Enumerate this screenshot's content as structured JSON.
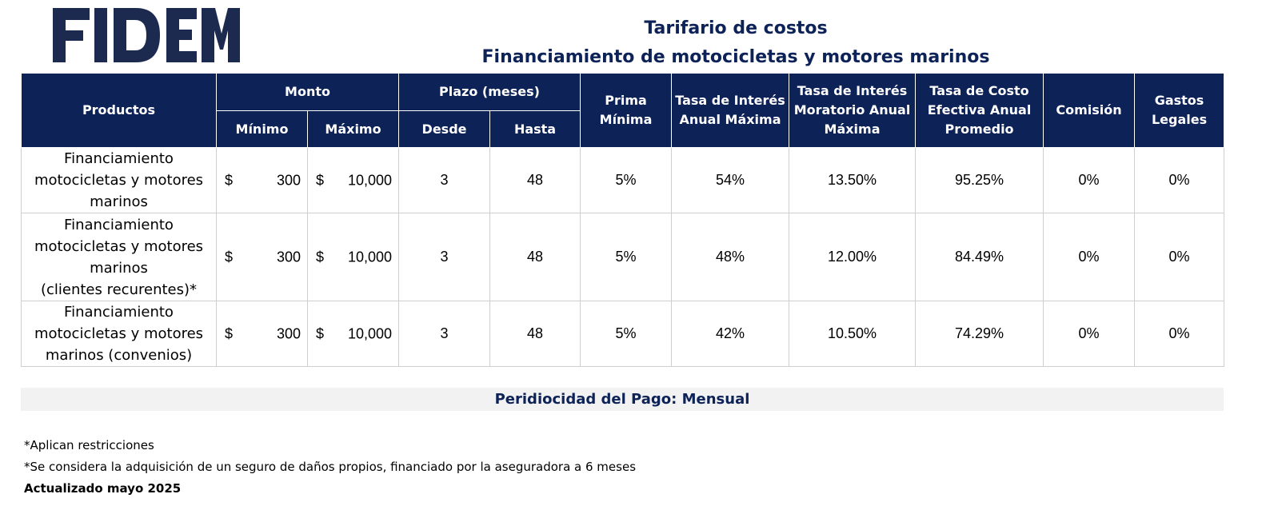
{
  "logo": {
    "text": "FIDEM",
    "color": "#1b2a4e"
  },
  "title": "Tarifario de costos",
  "subtitle": "Financiamiento de motocicletas y motores marinos",
  "table": {
    "header_color": "#0d2257",
    "headers": {
      "productos": "Productos",
      "monto": "Monto",
      "minimo": "Mínimo",
      "maximo": "Máximo",
      "plazo": "Plazo (meses)",
      "desde": "Desde",
      "hasta": "Hasta",
      "prima": "Prima Mínima",
      "tasa_interes": "Tasa de Interés Anual Máxima",
      "tasa_moratorio": "Tasa de Interés Moratorio Anual Máxima",
      "tasa_costo": "Tasa de Costo Efectiva Anual Promedio",
      "comision": "Comisión",
      "gastos": "Gastos Legales"
    },
    "rows": [
      {
        "producto": [
          "Financiamiento",
          "motocicletas y motores",
          "marinos"
        ],
        "currency": "$",
        "minimo": "300",
        "maximo": "10,000",
        "desde": "3",
        "hasta": "48",
        "prima": "5%",
        "tasa_interes": "54%",
        "tasa_moratorio": "13.50%",
        "tasa_costo": "95.25%",
        "comision": "0%",
        "gastos": "0%"
      },
      {
        "producto": [
          "Financiamiento",
          "motocicletas y motores",
          "marinos",
          "(clientes recurentes)*"
        ],
        "currency": "$",
        "minimo": "300",
        "maximo": "10,000",
        "desde": "3",
        "hasta": "48",
        "prima": "5%",
        "tasa_interes": "48%",
        "tasa_moratorio": "12.00%",
        "tasa_costo": "84.49%",
        "comision": "0%",
        "gastos": "0%"
      },
      {
        "producto": [
          "Financiamiento",
          "motocicletas y motores",
          "marinos (convenios)"
        ],
        "currency": "$",
        "minimo": "300",
        "maximo": "10,000",
        "desde": "3",
        "hasta": "48",
        "prima": "5%",
        "tasa_interes": "42%",
        "tasa_moratorio": "10.50%",
        "tasa_costo": "74.29%",
        "comision": "0%",
        "gastos": "0%"
      }
    ]
  },
  "periodicidad": "Peridiocidad del Pago: Mensual",
  "notes": [
    "*Aplican restricciones",
    "*Se considera la adquisición de un seguro de daños propios, financiado por la aseguradora a 6 meses"
  ],
  "updated": "Actualizado mayo 2025"
}
